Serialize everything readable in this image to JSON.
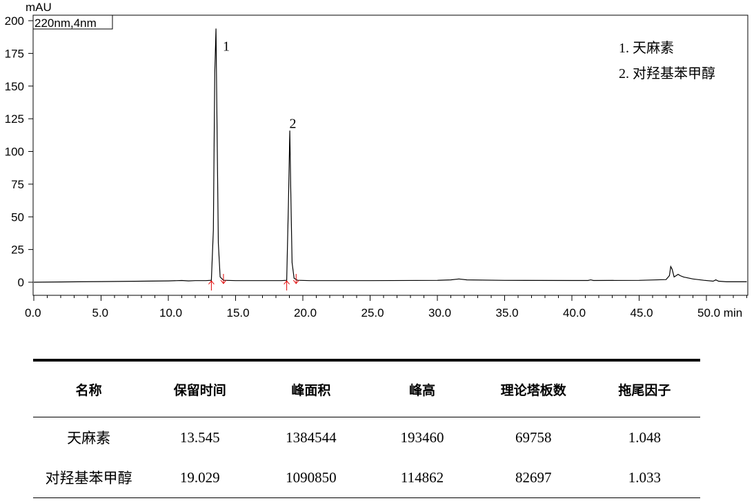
{
  "chart_data": {
    "type": "line",
    "ylabel": "mAU",
    "xlabel": "min",
    "detector": "220nm,4nm",
    "xlim": [
      0,
      53
    ],
    "ylim": [
      -10,
      205
    ],
    "x_ticks": [
      0.0,
      5.0,
      10.0,
      15.0,
      20.0,
      25.0,
      30.0,
      35.0,
      40.0,
      45.0,
      50.0
    ],
    "x_tick_labels": [
      "0.0",
      "5.0",
      "10.0",
      "15.0",
      "20.0",
      "25.0",
      "30.0",
      "35.0",
      "40.0",
      "45.0",
      "50.0 min"
    ],
    "y_ticks": [
      0,
      25,
      50,
      75,
      100,
      125,
      150,
      175,
      200
    ],
    "y_tick_labels": [
      "0",
      "25",
      "50",
      "75",
      "100",
      "125",
      "150",
      "175",
      "200"
    ],
    "peak_labels": [
      {
        "text": "1",
        "x": 14.05,
        "y": 177
      },
      {
        "text": "2",
        "x": 19.0,
        "y": 118
      }
    ],
    "integration_markers": [
      13.2,
      14.1,
      18.8,
      19.5
    ],
    "legend": [
      "1.  天麻素",
      "2.  对羟基苯甲醇"
    ],
    "series": [
      {
        "color": "#000000",
        "x": [
          0,
          5,
          10,
          11.0,
          11.5,
          12.0,
          12.8,
          13.2,
          13.35,
          13.45,
          13.545,
          13.62,
          13.72,
          13.85,
          14.1,
          15,
          18.4,
          18.8,
          18.93,
          19.029,
          19.1,
          19.2,
          19.35,
          19.6,
          20.5,
          25,
          30,
          31.0,
          31.6,
          32.2,
          35,
          40,
          41.2,
          41.4,
          41.6,
          45,
          47.0,
          47.25,
          47.35,
          47.45,
          47.6,
          47.75,
          47.9,
          48.05,
          48.3,
          49.0,
          49.8,
          50.5,
          50.7,
          50.9,
          51.5,
          53
        ],
        "y": [
          0,
          0.5,
          1,
          1.3,
          1.0,
          1.2,
          1.2,
          1.5,
          40,
          160,
          194,
          120,
          30,
          4,
          1.5,
          1.2,
          1.2,
          1.5,
          60,
          116,
          70,
          15,
          3,
          1.5,
          1.2,
          1.2,
          1.4,
          1.8,
          2.5,
          1.8,
          1.4,
          1.3,
          1.3,
          1.8,
          1.3,
          1.4,
          2.0,
          5,
          12,
          10,
          4,
          5,
          6,
          5,
          4,
          2.5,
          1.5,
          0.8,
          1.8,
          0.8,
          0.3,
          0.3
        ]
      }
    ]
  },
  "table": {
    "headers": [
      "名称",
      "保留时间",
      "峰面积",
      "峰高",
      "理论塔板数",
      "拖尾因子"
    ],
    "rows": [
      [
        "天麻素",
        "13.545",
        "1384544",
        "193460",
        "69758",
        "1.048"
      ],
      [
        "对羟基苯甲醇",
        "19.029",
        "1090850",
        "114862",
        "82697",
        "1.033"
      ]
    ]
  }
}
